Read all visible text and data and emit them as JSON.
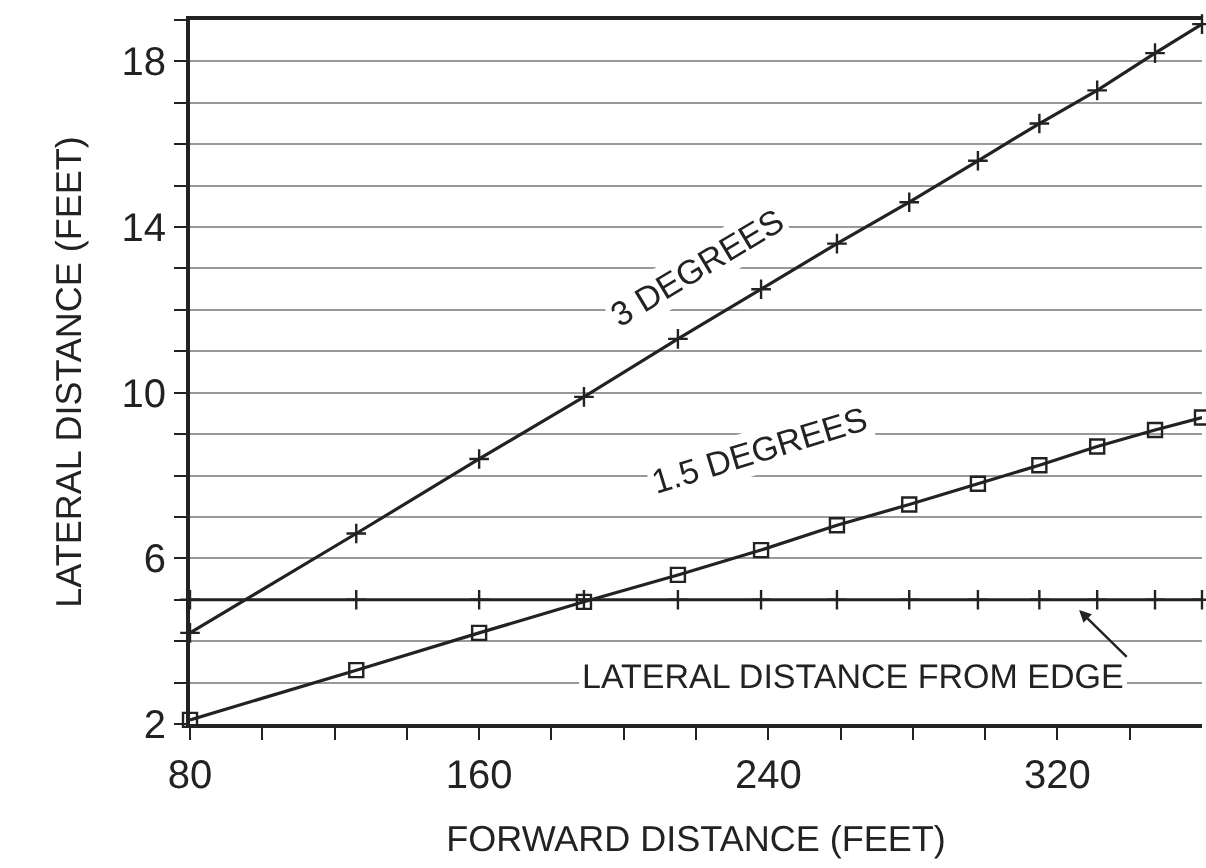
{
  "chart_data": {
    "type": "line",
    "xlabel": "FORWARD DISTANCE (FEET)",
    "ylabel": "LATERAL DISTANCE (FEET)",
    "x": [
      80,
      126,
      160,
      189,
      215,
      238,
      259,
      279,
      298,
      315,
      331,
      347,
      360
    ],
    "series": [
      {
        "color": "#222222",
        "marker": "cross",
        "values": [
          4.2,
          6.6,
          8.4,
          9.9,
          11.3,
          12.5,
          13.6,
          14.6,
          15.6,
          16.5,
          17.3,
          18.2,
          18.9
        ]
      },
      {
        "color": "#222222",
        "marker": "square",
        "values": [
          2.1,
          3.3,
          4.2,
          4.95,
          5.6,
          6.2,
          6.8,
          7.3,
          7.8,
          8.25,
          8.7,
          9.1,
          9.4
        ]
      },
      {
        "color": "#222222",
        "marker": "cross",
        "values": [
          5,
          5,
          5,
          5,
          5,
          5,
          5,
          5,
          5,
          5,
          5,
          5,
          5
        ]
      }
    ],
    "annotations": [
      "3 DEGREES",
      "1.5 DEGREES",
      "LATERAL DISTANCE FROM EDGE"
    ],
    "xlim": [
      80,
      360
    ],
    "ylim": [
      2,
      19
    ],
    "xticks": [
      80,
      {
        "value": 100,
        "label": null
      },
      {
        "value": 120,
        "label": null
      },
      {
        "value": 140,
        "label": null
      },
      160,
      {
        "value": 180,
        "label": null
      },
      {
        "value": 200,
        "label": null
      },
      {
        "value": 220,
        "label": null
      },
      240,
      {
        "value": 260,
        "label": null
      },
      {
        "value": 280,
        "label": null
      },
      {
        "value": 300,
        "label": null
      },
      320,
      {
        "value": 340,
        "label": null
      }
    ],
    "yticks": [
      2,
      {
        "value": 3,
        "label": null
      },
      {
        "value": 4,
        "label": null
      },
      {
        "value": 5,
        "label": null
      },
      6,
      {
        "value": 7,
        "label": null
      },
      {
        "value": 8,
        "label": null
      },
      {
        "value": 9,
        "label": null
      },
      10,
      {
        "value": 11,
        "label": null
      },
      {
        "value": 12,
        "label": null
      },
      {
        "value": 13,
        "label": null
      },
      14,
      {
        "value": 15,
        "label": null
      },
      {
        "value": 16,
        "label": null
      },
      {
        "value": 17,
        "label": null
      },
      18,
      {
        "value": 19,
        "label": null
      }
    ],
    "grid": "y",
    "line_style": "solid"
  }
}
